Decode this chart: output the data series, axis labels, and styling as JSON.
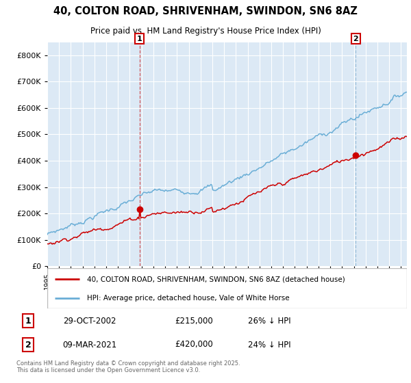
{
  "title": "40, COLTON ROAD, SHRIVENHAM, SWINDON, SN6 8AZ",
  "subtitle": "Price paid vs. HM Land Registry's House Price Index (HPI)",
  "background_color": "#dce9f5",
  "plot_bg_color": "#dce9f5",
  "hpi_color": "#6aaed6",
  "price_color": "#cc0000",
  "ylim": [
    0,
    850000
  ],
  "yticks": [
    0,
    100000,
    200000,
    300000,
    400000,
    500000,
    600000,
    700000,
    800000
  ],
  "legend_items": [
    "40, COLTON ROAD, SHRIVENHAM, SWINDON, SN6 8AZ (detached house)",
    "HPI: Average price, detached house, Vale of White Horse"
  ],
  "sale1_date": "29-OCT-2002",
  "sale1_price": "£215,000",
  "sale1_hpi": "26% ↓ HPI",
  "sale2_date": "09-MAR-2021",
  "sale2_price": "£420,000",
  "sale2_hpi": "24% ↓ HPI",
  "footnote": "Contains HM Land Registry data © Crown copyright and database right 2025.\nThis data is licensed under the Open Government Licence v3.0.",
  "start_year": 1995,
  "end_year": 2025,
  "sale1_x": 2002.833,
  "sale2_x": 2021.167
}
